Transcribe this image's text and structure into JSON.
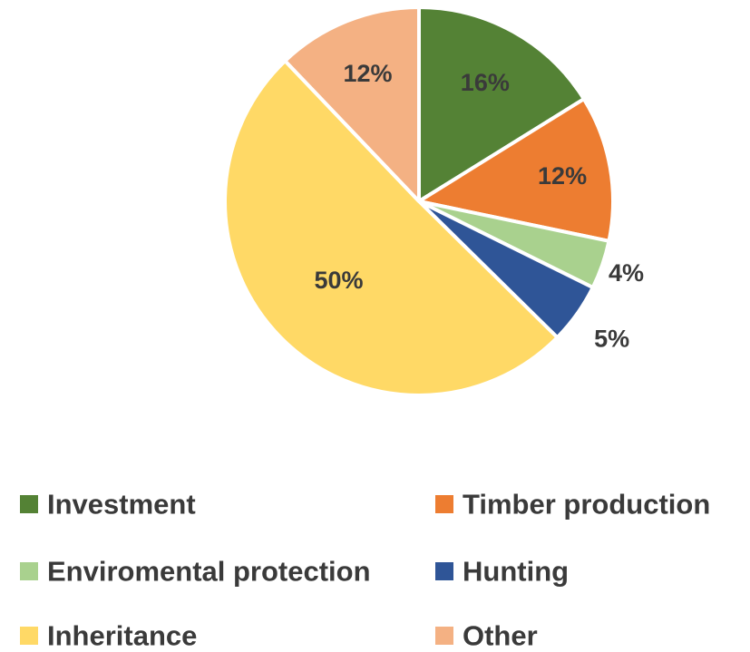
{
  "chart_data": {
    "type": "pie",
    "title": "",
    "labels": [
      "Investment",
      "Timber production",
      "Enviromental protection",
      "Hunting",
      "Inheritance",
      "Other"
    ],
    "values": [
      16,
      12,
      4,
      5,
      50,
      12
    ],
    "data_labels": [
      "16%",
      "12%",
      "4%",
      "5%",
      "50%",
      "12%"
    ],
    "colors": [
      "#548235",
      "#ED7D31",
      "#A9D18E",
      "#2F5597",
      "#FFD966",
      "#F4B183"
    ],
    "start_angle_deg": 0,
    "direction": "clockwise",
    "legend": {
      "position": "bottom",
      "columns": 2
    }
  }
}
